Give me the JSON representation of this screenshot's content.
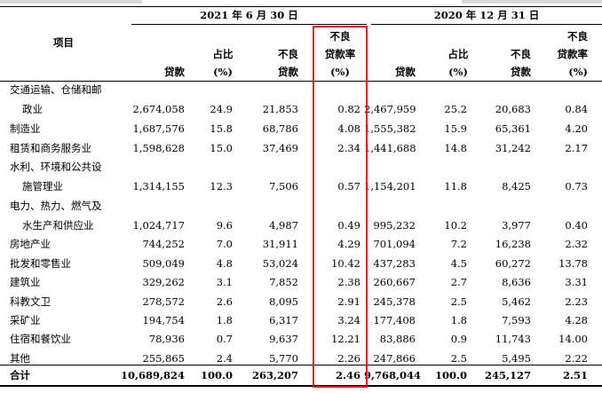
{
  "header": {
    "period_current": "2021 年 6 月 30 日",
    "period_prior": "2020 年 12 月 31 日",
    "item": "项目",
    "col_loans": "贷款",
    "col_share_line1": "占比",
    "col_share_line2": "(%)",
    "col_npl_line1": "不良",
    "col_npl_line2": "贷款",
    "col_nplr_line1": "不良",
    "col_nplr_line2": "贷款率",
    "col_nplr_line3": "(%)"
  },
  "rows": [
    {
      "label": [
        "交通运输、仓储和邮",
        "政业"
      ],
      "c_loans": "2,674,058",
      "c_share": "24.9",
      "c_npl": "21,853",
      "c_nplr": "0.82",
      "p_loans": "2,467,959",
      "p_share": "25.2",
      "p_npl": "20,683",
      "p_nplr": "0.84"
    },
    {
      "label": [
        "制造业"
      ],
      "c_loans": "1,687,576",
      "c_share": "15.8",
      "c_npl": "68,786",
      "c_nplr": "4.08",
      "p_loans": "1,555,382",
      "p_share": "15.9",
      "p_npl": "65,361",
      "p_nplr": "4.20"
    },
    {
      "label": [
        "租赁和商务服务业"
      ],
      "c_loans": "1,598,628",
      "c_share": "15.0",
      "c_npl": "37,469",
      "c_nplr": "2.34",
      "p_loans": "1,441,688",
      "p_share": "14.8",
      "p_npl": "31,242",
      "p_nplr": "2.17"
    },
    {
      "label": [
        "水利、环境和公共设",
        "施管理业"
      ],
      "c_loans": "1,314,155",
      "c_share": "12.3",
      "c_npl": "7,506",
      "c_nplr": "0.57",
      "p_loans": "1,154,201",
      "p_share": "11.8",
      "p_npl": "8,425",
      "p_nplr": "0.73"
    },
    {
      "label": [
        "电力、热力、燃气及",
        "水生产和供应业"
      ],
      "c_loans": "1,024,717",
      "c_share": "9.6",
      "c_npl": "4,987",
      "c_nplr": "0.49",
      "p_loans": "995,232",
      "p_share": "10.2",
      "p_npl": "3,977",
      "p_nplr": "0.40"
    },
    {
      "label": [
        "房地产业"
      ],
      "c_loans": "744,252",
      "c_share": "7.0",
      "c_npl": "31,911",
      "c_nplr": "4.29",
      "p_loans": "701,094",
      "p_share": "7.2",
      "p_npl": "16,238",
      "p_nplr": "2.32"
    },
    {
      "label": [
        "批发和零售业"
      ],
      "c_loans": "509,049",
      "c_share": "4.8",
      "c_npl": "53,024",
      "c_nplr": "10.42",
      "p_loans": "437,283",
      "p_share": "4.5",
      "p_npl": "60,272",
      "p_nplr": "13.78"
    },
    {
      "label": [
        "建筑业"
      ],
      "c_loans": "329,262",
      "c_share": "3.1",
      "c_npl": "7,852",
      "c_nplr": "2.38",
      "p_loans": "260,667",
      "p_share": "2.7",
      "p_npl": "8,636",
      "p_nplr": "3.31"
    },
    {
      "label": [
        "科教文卫"
      ],
      "c_loans": "278,572",
      "c_share": "2.6",
      "c_npl": "8,095",
      "c_nplr": "2.91",
      "p_loans": "245,378",
      "p_share": "2.5",
      "p_npl": "5,462",
      "p_nplr": "2.23"
    },
    {
      "label": [
        "采矿业"
      ],
      "c_loans": "194,754",
      "c_share": "1.8",
      "c_npl": "6,317",
      "c_nplr": "3.24",
      "p_loans": "177,408",
      "p_share": "1.8",
      "p_npl": "7,593",
      "p_nplr": "4.28"
    },
    {
      "label": [
        "住宿和餐饮业"
      ],
      "c_loans": "78,936",
      "c_share": "0.7",
      "c_npl": "9,637",
      "c_nplr": "12.21",
      "p_loans": "83,886",
      "p_share": "0.9",
      "p_npl": "11,743",
      "p_nplr": "14.00"
    },
    {
      "label": [
        "其他"
      ],
      "c_loans": "255,865",
      "c_share": "2.4",
      "c_npl": "5,770",
      "c_nplr": "2.26",
      "p_loans": "247,866",
      "p_share": "2.5",
      "p_npl": "5,495",
      "p_nplr": "2.22"
    }
  ],
  "total": {
    "label": "合计",
    "c_loans": "10,689,824",
    "c_share": "100.0",
    "c_npl": "263,207",
    "c_nplr": "2.46",
    "p_loans": "9,768,044",
    "p_share": "100.0",
    "p_npl": "245,127",
    "p_nplr": "2.51"
  },
  "colors": {
    "highlight": "#e0191e"
  }
}
